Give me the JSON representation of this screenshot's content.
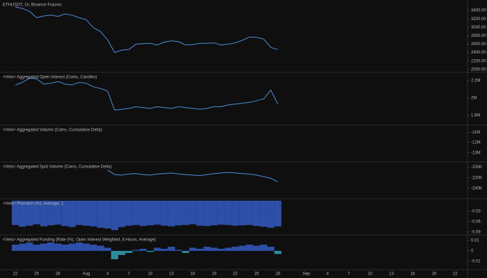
{
  "x_axis": {
    "categories": [
      "22",
      null,
      null,
      "25",
      null,
      null,
      "28",
      null,
      null,
      null,
      "Aug",
      null,
      null,
      "4",
      null,
      null,
      "7",
      null,
      null,
      "10",
      null,
      null,
      "13",
      null,
      null,
      "16",
      null,
      null,
      "19",
      null,
      null,
      "22",
      null,
      null,
      "25",
      null,
      null,
      "28",
      null,
      null,
      null,
      "Sep",
      null,
      null,
      "4",
      null,
      null,
      "7",
      null,
      null,
      "10",
      null,
      null,
      "13",
      null,
      null,
      "16",
      null,
      null,
      "19",
      null,
      null,
      "22"
    ]
  },
  "chart_data": [
    {
      "type": "line",
      "title": "ETHUSDT, 1h, Binance Futures",
      "color": "#4a90d9",
      "values": [
        3480,
        3450,
        3380,
        3230,
        3270,
        3290,
        3260,
        3320,
        3290,
        3230,
        3180,
        2990,
        2900,
        2700,
        2400,
        2460,
        2470,
        2600,
        2610,
        2620,
        2580,
        2650,
        2680,
        2660,
        2580,
        2590,
        2620,
        2620,
        2630,
        2580,
        2600,
        2630,
        2690,
        2770,
        2760,
        2720,
        2520,
        2470,
        null,
        null,
        null,
        null,
        null,
        null,
        null,
        null,
        null,
        null,
        null,
        null,
        null,
        null,
        null,
        null,
        null,
        null,
        null,
        null,
        null,
        null,
        null,
        null,
        null
      ],
      "ylim": [
        1930,
        3650
      ],
      "yticks": [
        {
          "value": 2000,
          "label": "2000.00"
        },
        {
          "value": 2200,
          "label": "2200.00"
        },
        {
          "value": 2400,
          "label": "2400.00"
        },
        {
          "value": 2600,
          "label": "2600.00"
        },
        {
          "value": 2800,
          "label": "2800.00"
        },
        {
          "value": 3000,
          "label": "3000.00"
        },
        {
          "value": 3200,
          "label": "3200.00"
        },
        {
          "value": 3400,
          "label": "3400.00"
        }
      ]
    },
    {
      "type": "line",
      "title": "<Velo> Aggregated Open Interest (Coins, Candles)",
      "color": "#4a90d9",
      "values": [
        2150000,
        2180000,
        2230000,
        2220000,
        2160000,
        2170000,
        2190000,
        2160000,
        2150000,
        2180000,
        2170000,
        2130000,
        2110000,
        2080000,
        1860000,
        1870000,
        1880000,
        1900000,
        1890000,
        1880000,
        1900000,
        1890000,
        1880000,
        1900000,
        1890000,
        1880000,
        1870000,
        1880000,
        1900000,
        1900000,
        1920000,
        1930000,
        1940000,
        1950000,
        1970000,
        1990000,
        2090000,
        1930000,
        null,
        null,
        null,
        null,
        null,
        null,
        null,
        null,
        null,
        null,
        null,
        null,
        null,
        null,
        null,
        null,
        null,
        null,
        null,
        null,
        null,
        null,
        null,
        null,
        null
      ],
      "ylim": [
        1688000,
        2296000
      ],
      "yticks": [
        {
          "value": 1800000,
          "label": "1.8M"
        },
        {
          "value": 2000000,
          "label": "2M"
        },
        {
          "value": 2200000,
          "label": "2.2M"
        }
      ]
    },
    {
      "type": "line",
      "title": "<Velo> Aggregated Volume (Coins, Cumulative Delta)",
      "ylim": [
        -13900000,
        -10300000
      ],
      "yticks": [
        {
          "value": -13000000,
          "label": "-13M"
        },
        {
          "value": -12000000,
          "label": "-12M"
        },
        {
          "value": -11000000,
          "label": "-11M"
        }
      ]
    },
    {
      "type": "line",
      "title": "<Velo> Aggregated Spot Volume (Coins, Cumulative Delta)",
      "color": "#4a90d9",
      "values": [
        null,
        null,
        null,
        null,
        null,
        null,
        null,
        null,
        null,
        null,
        null,
        null,
        null,
        -205000,
        -214000,
        -215000,
        -213000,
        -212000,
        -214000,
        -215000,
        -213000,
        -212000,
        -211000,
        -213000,
        -214000,
        -215000,
        -216000,
        -214000,
        -212000,
        -211000,
        -210000,
        -211000,
        -212000,
        -213000,
        -215000,
        -218000,
        -221000,
        -228000,
        null,
        null,
        null,
        null,
        null,
        null,
        null,
        null,
        null,
        null,
        null,
        null,
        null,
        null,
        null,
        null,
        null,
        null,
        null,
        null,
        null,
        null,
        null,
        null,
        null
      ],
      "ylim": [
        -260000,
        -190000
      ],
      "yticks": [
        {
          "value": -240000,
          "label": "-240K"
        },
        {
          "value": -220000,
          "label": "-220K"
        },
        {
          "value": -200000,
          "label": "-200K"
        }
      ]
    },
    {
      "type": "area",
      "title": "<Velo> Premium (%), Average, 1",
      "color": "#2d4fa8",
      "values": [
        -0.07,
        -0.075,
        -0.072,
        -0.068,
        -0.074,
        -0.071,
        -0.069,
        -0.073,
        -0.076,
        -0.07,
        -0.072,
        -0.074,
        -0.078,
        -0.08,
        -0.085,
        -0.076,
        -0.072,
        -0.07,
        -0.073,
        -0.071,
        -0.069,
        -0.072,
        -0.074,
        -0.071,
        -0.07,
        -0.068,
        -0.072,
        -0.073,
        -0.071,
        -0.069,
        -0.07,
        -0.072,
        -0.071,
        -0.07,
        -0.073,
        -0.075,
        -0.078,
        -0.074,
        null,
        null,
        null,
        null,
        null,
        null,
        null,
        null,
        null,
        null,
        null,
        null,
        null,
        null,
        null,
        null,
        null,
        null,
        null,
        null,
        null,
        null,
        null,
        null,
        null
      ],
      "ylim": [
        -0.0985,
        0.0055
      ],
      "yticks": [
        -0.09,
        -0.06,
        -0.03
      ]
    },
    {
      "type": "area",
      "title": "<Velo> Aggregated Funding (Rate (%), Open Interest Weighted, 8 Hours, Average)",
      "color": "#2d4fa8",
      "negative_color": "#2a8c9c",
      "values": [
        0.006,
        0.007,
        0.008,
        0.006,
        0.007,
        0.008,
        0.007,
        0.006,
        0.007,
        0.008,
        0.007,
        0.006,
        0.005,
        0.003,
        -0.008,
        -0.004,
        -0.002,
        0.001,
        0.002,
        -0.001,
        0.003,
        0.002,
        0.004,
        0.001,
        -0.002,
        0.003,
        0.002,
        0.004,
        0.003,
        0.002,
        0.003,
        0.004,
        0.005,
        0.006,
        0.005,
        0.006,
        0.004,
        -0.003,
        null,
        null,
        null,
        null,
        null,
        null,
        null,
        null,
        null,
        null,
        null,
        null,
        null,
        null,
        null,
        null,
        null,
        null,
        null,
        null,
        null,
        null,
        null,
        null,
        null
      ],
      "ylim": [
        -0.018,
        0.0153
      ],
      "yticks": [
        -0.01,
        0,
        0.01
      ]
    }
  ]
}
